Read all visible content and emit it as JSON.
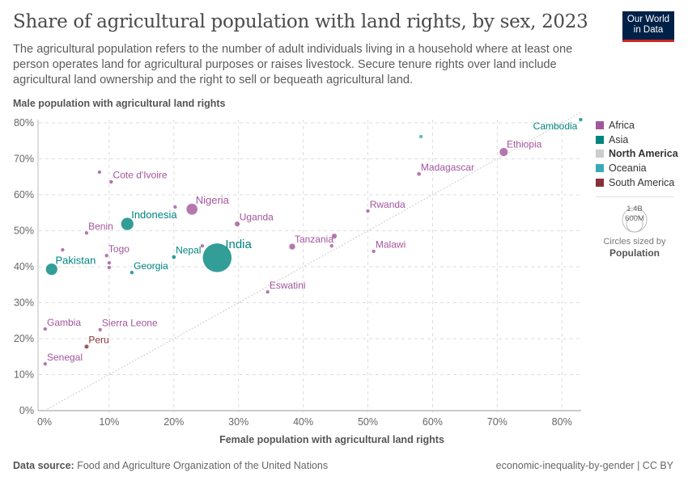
{
  "header": {
    "title": "Share of agricultural population with land rights, by sex, 2023",
    "subtitle": "The agricultural population refers to the number of adult individuals living in a household where at least one person operates land for agricultural purposes or raises livestock. Secure tenure rights over land include agricultural land ownership and the right to sell or bequeath agricultural land.",
    "logo": "Our World in Data"
  },
  "footer": {
    "source_label": "Data source:",
    "source": "Food and Agriculture Organization of the United Nations",
    "right": "economic-inequality-by-gender | CC BY"
  },
  "chart_data": {
    "type": "scatter",
    "xlabel": "Female population with agricultural land rights",
    "ylabel": "Male population with agricultural land rights",
    "xlim": [
      0,
      83
    ],
    "ylim": [
      0,
      80
    ],
    "xticks": [
      "0%",
      "10%",
      "20%",
      "30%",
      "40%",
      "50%",
      "60%",
      "70%",
      "80%"
    ],
    "yticks": [
      "0%",
      "10%",
      "20%",
      "30%",
      "40%",
      "50%",
      "60%",
      "70%",
      "80%"
    ],
    "grid": true,
    "reference_line": "y = x",
    "legend_position": "right",
    "size_legend": {
      "title": "Circles sized by",
      "variable": "Population",
      "values": [
        "1.4B",
        "600M"
      ]
    },
    "regions": [
      {
        "name": "Africa",
        "color": "#a2559c"
      },
      {
        "name": "Asia",
        "color": "#00847e"
      },
      {
        "name": "North America",
        "color": "#cccccc"
      },
      {
        "name": "Oceania",
        "color": "#38aaba"
      },
      {
        "name": "South America",
        "color": "#883039"
      }
    ],
    "points": [
      {
        "label": "Cambodia",
        "region": "Asia",
        "x": 82.9,
        "y": 80.9,
        "pop": 17
      },
      {
        "label": "",
        "region": "Oceania",
        "x": 58.2,
        "y": 76.2,
        "pop": 10
      },
      {
        "label": "Ethiopia",
        "region": "Africa",
        "x": 71.0,
        "y": 71.9,
        "pop": 126
      },
      {
        "label": "Madagascar",
        "region": "Africa",
        "x": 57.9,
        "y": 65.8,
        "pop": 30
      },
      {
        "label": "Rwanda",
        "region": "Africa",
        "x": 50.0,
        "y": 55.5,
        "pop": 14
      },
      {
        "label": "Tanzania",
        "region": "Africa",
        "x": 38.3,
        "y": 45.6,
        "pop": 67
      },
      {
        "label": "",
        "region": "Africa",
        "x": 44.8,
        "y": 48.5,
        "pop": 50
      },
      {
        "label": "",
        "region": "Africa",
        "x": 44.4,
        "y": 45.8,
        "pop": 15
      },
      {
        "label": "Malawi",
        "region": "Africa",
        "x": 50.9,
        "y": 44.3,
        "pop": 20
      },
      {
        "label": "Eswatini",
        "region": "Africa",
        "x": 34.5,
        "y": 33.0,
        "pop": 1.2
      },
      {
        "label": "Uganda",
        "region": "Africa",
        "x": 29.8,
        "y": 51.9,
        "pop": 48
      },
      {
        "label": "India",
        "region": "Asia",
        "x": 26.7,
        "y": 42.5,
        "pop": 1430
      },
      {
        "label": "",
        "region": "Africa",
        "x": 24.4,
        "y": 45.8,
        "pop": 12
      },
      {
        "label": "Nepal",
        "region": "Asia",
        "x": 20.0,
        "y": 42.7,
        "pop": 30
      },
      {
        "label": "Nigeria",
        "region": "Africa",
        "x": 22.8,
        "y": 56.0,
        "pop": 223
      },
      {
        "label": "",
        "region": "Africa",
        "x": 20.2,
        "y": 56.6,
        "pop": 20
      },
      {
        "label": "Indonesia",
        "region": "Asia",
        "x": 12.8,
        "y": 51.9,
        "pop": 277
      },
      {
        "label": "Cote d'Ivoire",
        "region": "Africa",
        "x": 10.3,
        "y": 63.6,
        "pop": 28
      },
      {
        "label": "",
        "region": "Africa",
        "x": 8.5,
        "y": 66.3,
        "pop": 20
      },
      {
        "label": "Benin",
        "region": "Africa",
        "x": 6.5,
        "y": 49.4,
        "pop": 13
      },
      {
        "label": "",
        "region": "Africa",
        "x": 2.8,
        "y": 44.7,
        "pop": 20
      },
      {
        "label": "Togo",
        "region": "Africa",
        "x": 9.6,
        "y": 43.1,
        "pop": 9
      },
      {
        "label": "",
        "region": "Africa",
        "x": 10.0,
        "y": 41.1,
        "pop": 10
      },
      {
        "label": "",
        "region": "Africa",
        "x": 10.0,
        "y": 39.8,
        "pop": 10
      },
      {
        "label": "Georgia",
        "region": "Asia",
        "x": 13.5,
        "y": 38.4,
        "pop": 3.7
      },
      {
        "label": "Pakistan",
        "region": "Asia",
        "x": 1.1,
        "y": 39.3,
        "pop": 240
      },
      {
        "label": "Gambia",
        "region": "Africa",
        "x": 0.1,
        "y": 22.7,
        "pop": 2.7
      },
      {
        "label": "Sierra Leone",
        "region": "Africa",
        "x": 8.6,
        "y": 22.5,
        "pop": 8.8
      },
      {
        "label": "Peru",
        "region": "South America",
        "x": 6.5,
        "y": 17.8,
        "pop": 34
      },
      {
        "label": "Senegal",
        "region": "Africa",
        "x": 0.1,
        "y": 13.0,
        "pop": 18
      }
    ]
  }
}
